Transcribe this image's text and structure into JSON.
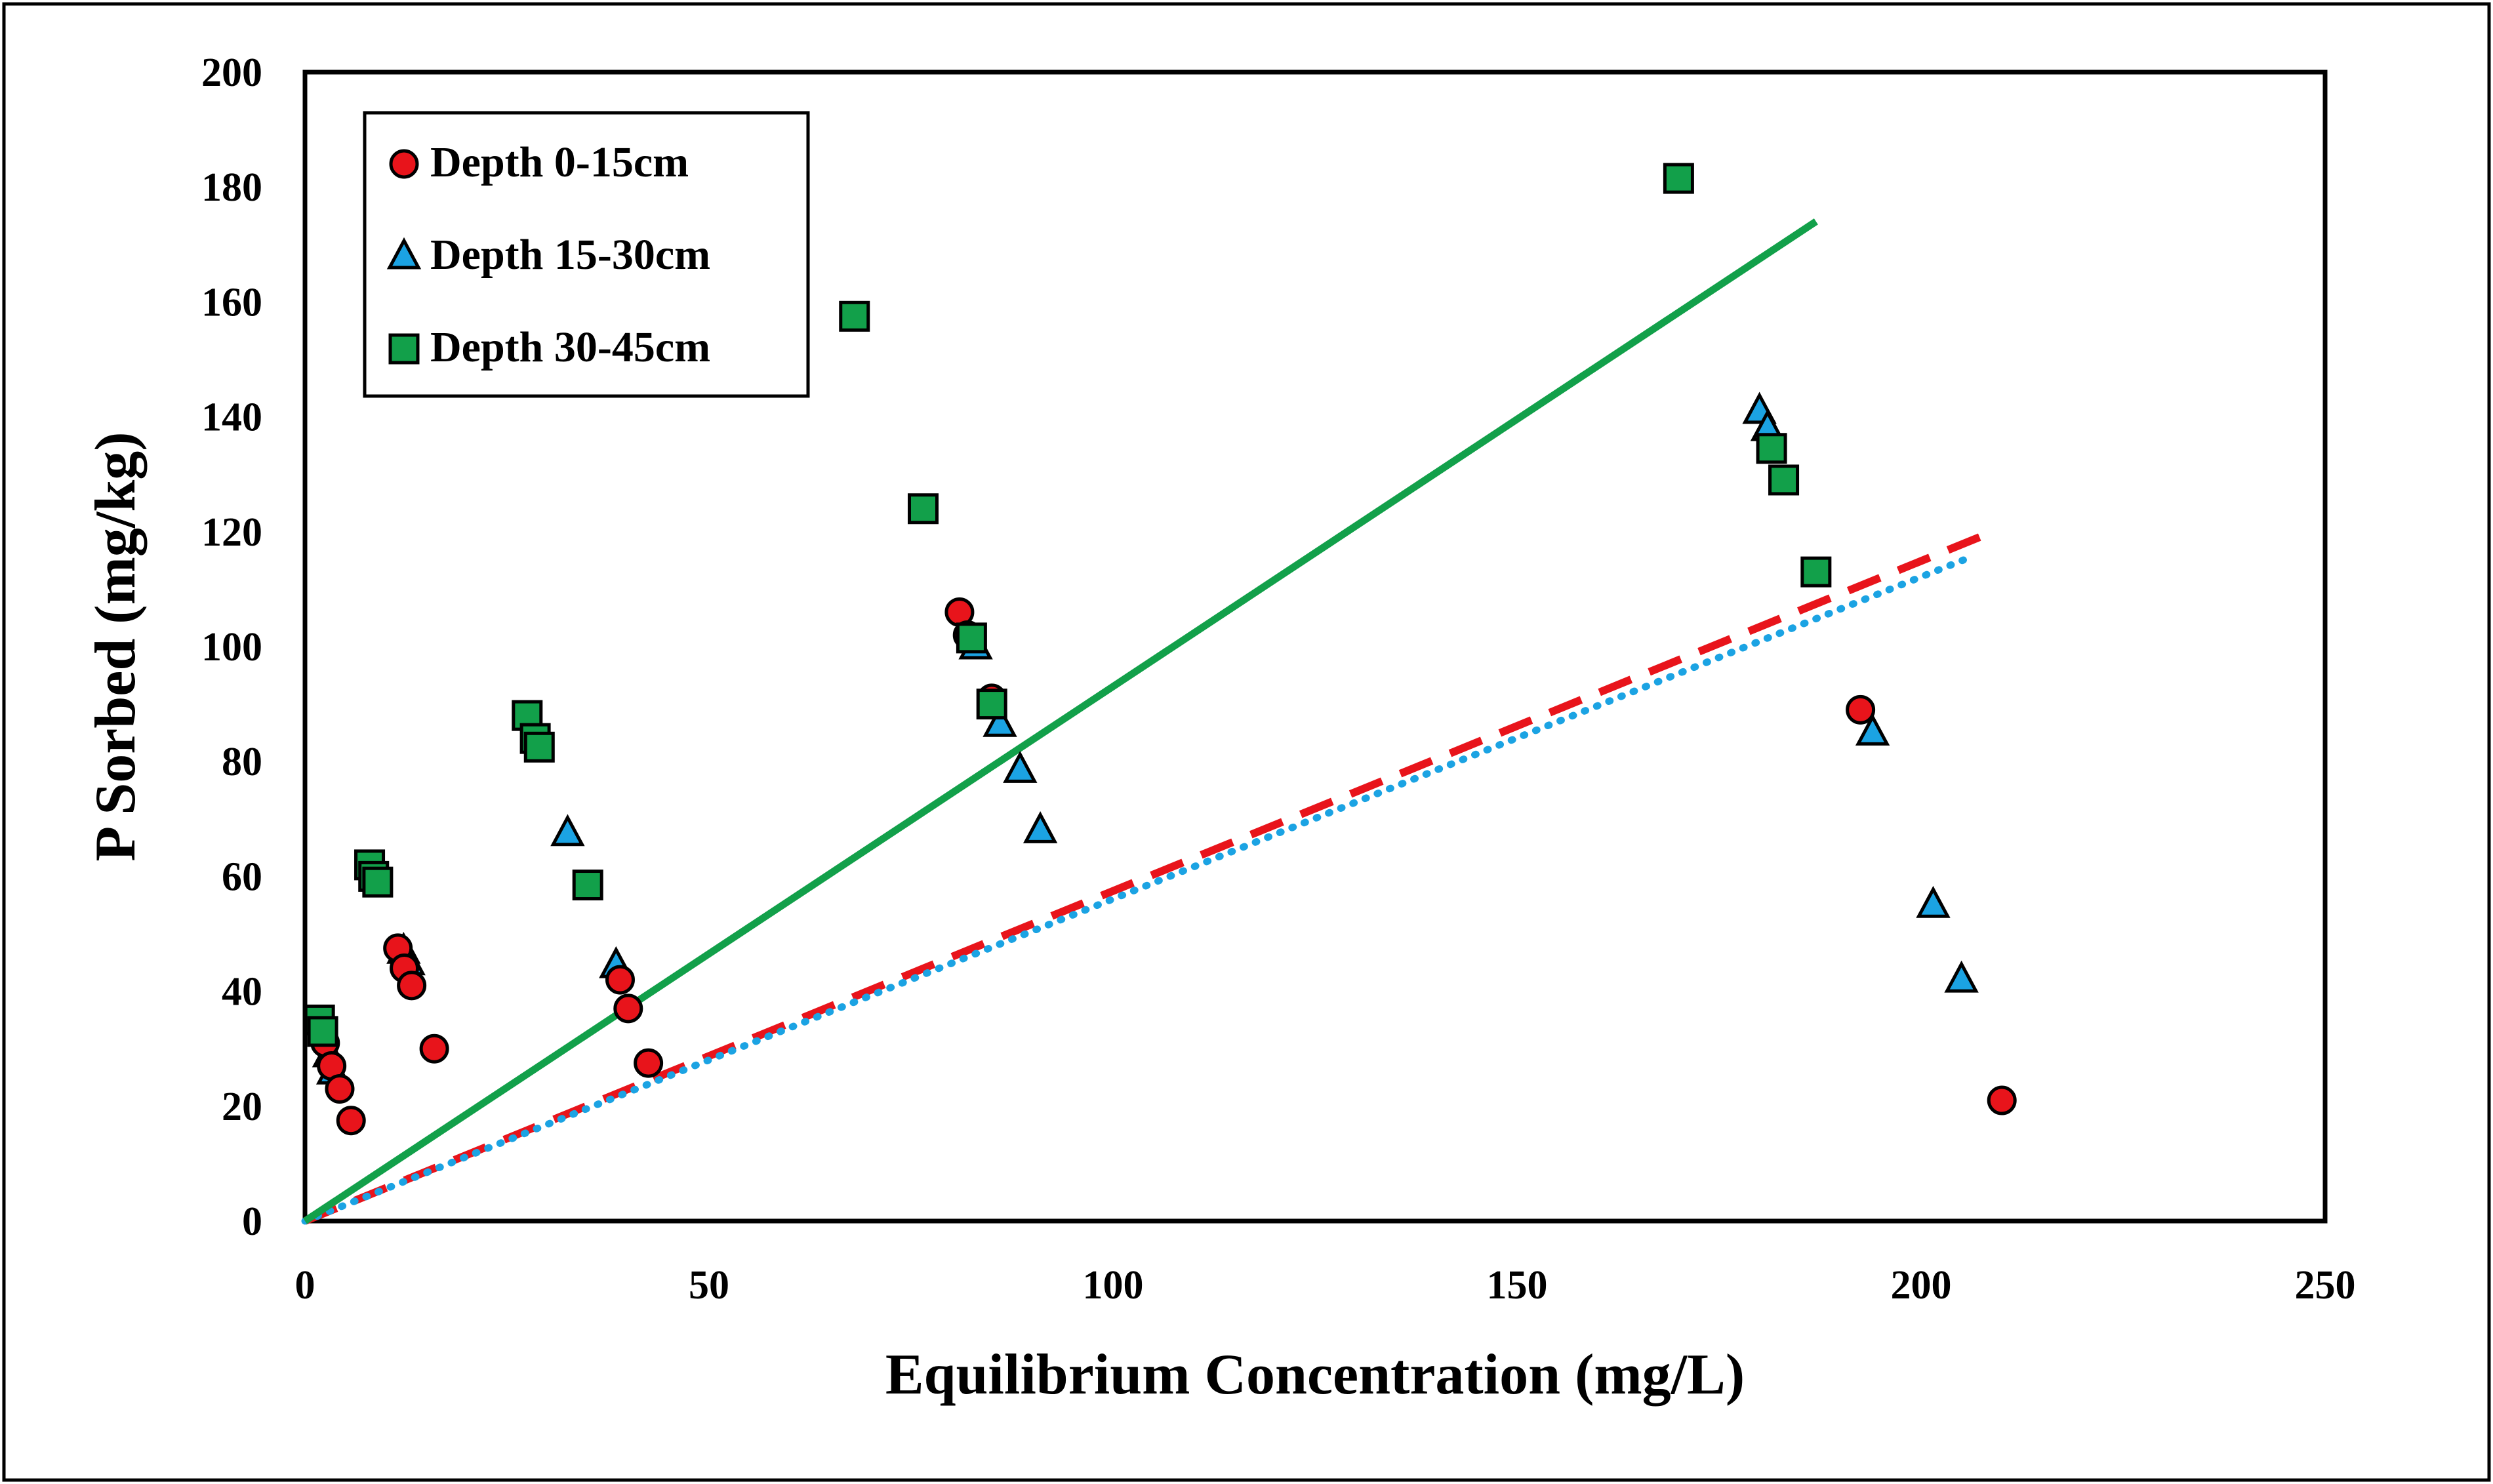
{
  "chart_data": {
    "type": "scatter",
    "title": "",
    "xlabel": "Equilibrium Concentration (mg/L)",
    "ylabel": "P Sorbed (mg/kg)",
    "xlim": [
      0,
      250
    ],
    "ylim": [
      0,
      200
    ],
    "x_ticks": [
      "0",
      "50",
      "100",
      "150",
      "200",
      "250"
    ],
    "y_ticks": [
      "0",
      "20",
      "40",
      "60",
      "80",
      "100",
      "120",
      "140",
      "160",
      "180",
      "200"
    ],
    "grid": false,
    "legend_position": "top-left",
    "series": [
      {
        "name": "Depth 0-15cm",
        "marker": "circle",
        "color": "#e8141b",
        "points": [
          [
            2.5,
            31
          ],
          [
            3.3,
            27
          ],
          [
            4.3,
            23
          ],
          [
            5.7,
            17.5
          ],
          [
            11.5,
            47.5
          ],
          [
            12.3,
            44
          ],
          [
            13.2,
            41
          ],
          [
            16,
            30
          ],
          [
            39,
            42
          ],
          [
            40,
            37
          ],
          [
            42.5,
            27.5
          ],
          [
            81,
            106
          ],
          [
            82,
            102
          ],
          [
            85,
            91
          ],
          [
            192.5,
            89
          ],
          [
            210,
            21
          ]
        ]
      },
      {
        "name": "Depth 15-30cm",
        "marker": "triangle",
        "color": "#1ba3e3",
        "points": [
          [
            3,
            29
          ],
          [
            3.5,
            26
          ],
          [
            12.2,
            47
          ],
          [
            12.8,
            45
          ],
          [
            32.5,
            67.5
          ],
          [
            38.5,
            44.5
          ],
          [
            83,
            100
          ],
          [
            86,
            86.5
          ],
          [
            88.5,
            78.5
          ],
          [
            91,
            68
          ],
          [
            180,
            141
          ],
          [
            181,
            138
          ],
          [
            194,
            85
          ],
          [
            201.5,
            55
          ],
          [
            205,
            42
          ]
        ]
      },
      {
        "name": "Depth 30-45cm",
        "marker": "square",
        "color": "#12a04a",
        "points": [
          [
            1.8,
            35
          ],
          [
            2.2,
            33
          ],
          [
            8,
            62
          ],
          [
            8.5,
            60
          ],
          [
            9,
            59
          ],
          [
            27.5,
            88
          ],
          [
            28.5,
            84
          ],
          [
            29,
            82.5
          ],
          [
            35,
            58.5
          ],
          [
            68,
            157.5
          ],
          [
            76.5,
            124
          ],
          [
            82.5,
            101.5
          ],
          [
            85,
            90
          ],
          [
            170,
            181.5
          ],
          [
            181.5,
            134.5
          ],
          [
            183,
            129
          ],
          [
            187,
            113
          ]
        ]
      }
    ],
    "fit_lines": [
      {
        "series": "Depth 0-15cm",
        "style": "dashed",
        "color": "#e8141b",
        "x": [
          0,
          208
        ],
        "y": [
          0,
          119.5
        ]
      },
      {
        "series": "Depth 15-30cm",
        "style": "dotted",
        "color": "#1ba3e3",
        "x": [
          0,
          206
        ],
        "y": [
          0,
          115.5
        ]
      },
      {
        "series": "Depth 30-45cm",
        "style": "solid",
        "color": "#12a04a",
        "x": [
          0,
          187
        ],
        "y": [
          0,
          174
        ]
      }
    ]
  }
}
